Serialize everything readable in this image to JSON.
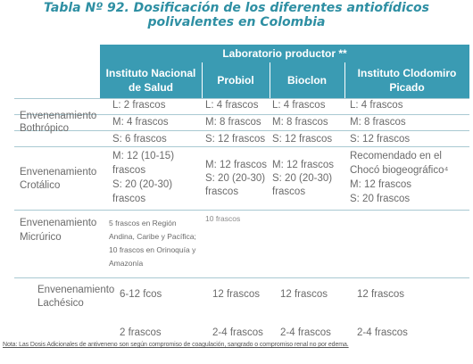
{
  "title": {
    "line1": "Tabla Nº 92. Dosificación de los diferentes antiofídicos",
    "line2": "polivalentes en Colombia"
  },
  "header": {
    "lab": "Laboratorio productor **",
    "cols": [
      {
        "l1": "Instituto Nacional",
        "l2": "de Salud"
      },
      {
        "l1": "Probiol",
        "l2": ""
      },
      {
        "l1": "Bioclon",
        "l2": ""
      },
      {
        "l1": "Instituto Clodomiro",
        "l2": "Picado"
      }
    ]
  },
  "rows": {
    "bothropico": {
      "label": [
        "Envenenamiento",
        "Bothrópico"
      ],
      "ins": [
        "L: 2 frascos",
        "M: 4 frascos",
        "S: 6 frascos"
      ],
      "probiol": [
        "L: 4 frascos",
        "M: 8 frascos",
        "S: 12 frascos"
      ],
      "bioclon": [
        "L: 4 frascos",
        "M: 8 frascos",
        "S: 12 frascos"
      ],
      "icp": [
        "L: 4 frascos",
        "M: 8 frascos",
        "S: 12 frascos"
      ]
    },
    "crotalico": {
      "label": [
        "Envenenamiento",
        "Crotálico"
      ],
      "ins": [
        "M: 12 (10-15)",
        "frascos",
        "S: 20 (20-30)",
        "frascos"
      ],
      "probiol": [
        "M: 12 frascos",
        "S: 20 (20-30)",
        "frascos"
      ],
      "bioclon": [
        "M: 12 frascos",
        "S: 20 (20-30)",
        "frascos"
      ],
      "icp": [
        "Recomendado en el",
        "Chocó biogeográfico⁴",
        "M: 12 frascos",
        "S: 20 frascos"
      ]
    },
    "micrurico": {
      "label": [
        "Envenenamiento",
        "Micrúrico"
      ],
      "ins": [
        "5 frascos en Región",
        "Andina, Caribe y Pacífica;",
        "10 frascos en Orinoquía y",
        "Amazonía"
      ],
      "probiol": [
        "10 frascos"
      ]
    },
    "lachesico": {
      "label": [
        "Envenenamiento",
        "Lachésico"
      ],
      "ins": "6-12 fcos",
      "probiol": "12 frascos",
      "bioclon": "12 frascos",
      "icp": "12 frascos"
    },
    "last": {
      "ins": "2 frascos",
      "probiol": "2-4 frascos",
      "bioclon": "2-4 frascos",
      "icp": "2-4 frascos"
    }
  },
  "note": "Nota: Las Dosis Adicionales de antiveneno son según compromiso de coagulación, sangrado o compromiso renal no por edema."
}
